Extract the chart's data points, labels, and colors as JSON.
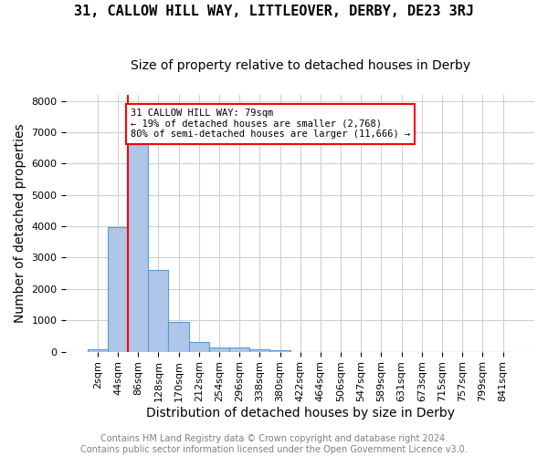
{
  "title": "31, CALLOW HILL WAY, LITTLEOVER, DERBY, DE23 3RJ",
  "subtitle": "Size of property relative to detached houses in Derby",
  "xlabel": "Distribution of detached houses by size in Derby",
  "ylabel": "Number of detached properties",
  "footnote1": "Contains HM Land Registry data © Crown copyright and database right 2024.",
  "footnote2": "Contains public sector information licensed under the Open Government Licence v3.0.",
  "bin_labels": [
    "2sqm",
    "44sqm",
    "86sqm",
    "128sqm",
    "170sqm",
    "212sqm",
    "254sqm",
    "296sqm",
    "338sqm",
    "380sqm",
    "422sqm",
    "464sqm",
    "506sqm",
    "547sqm",
    "589sqm",
    "631sqm",
    "673sqm",
    "715sqm",
    "757sqm",
    "799sqm",
    "841sqm"
  ],
  "bar_values": [
    80,
    3980,
    6620,
    2620,
    960,
    320,
    130,
    120,
    80,
    60,
    0,
    0,
    0,
    0,
    0,
    0,
    0,
    0,
    0,
    0,
    0
  ],
  "bar_color": "#aec6e8",
  "bar_edge_color": "#5b9bd5",
  "vline_x": 1.48,
  "vline_color": "red",
  "vline_linewidth": 1.5,
  "annotation_text": "31 CALLOW HILL WAY: 79sqm\n← 19% of detached houses are smaller (2,768)\n80% of semi-detached houses are larger (11,666) →",
  "annotation_box_color": "white",
  "annotation_box_edge_color": "red",
  "ylim": [
    0,
    8200
  ],
  "yticks": [
    0,
    1000,
    2000,
    3000,
    4000,
    5000,
    6000,
    7000,
    8000
  ],
  "grid_color": "#d0d0d0",
  "background_color": "white",
  "title_fontsize": 11,
  "subtitle_fontsize": 10,
  "axis_label_fontsize": 10,
  "tick_fontsize": 8,
  "annotation_fontsize": 7.5,
  "footnote_fontsize": 7
}
